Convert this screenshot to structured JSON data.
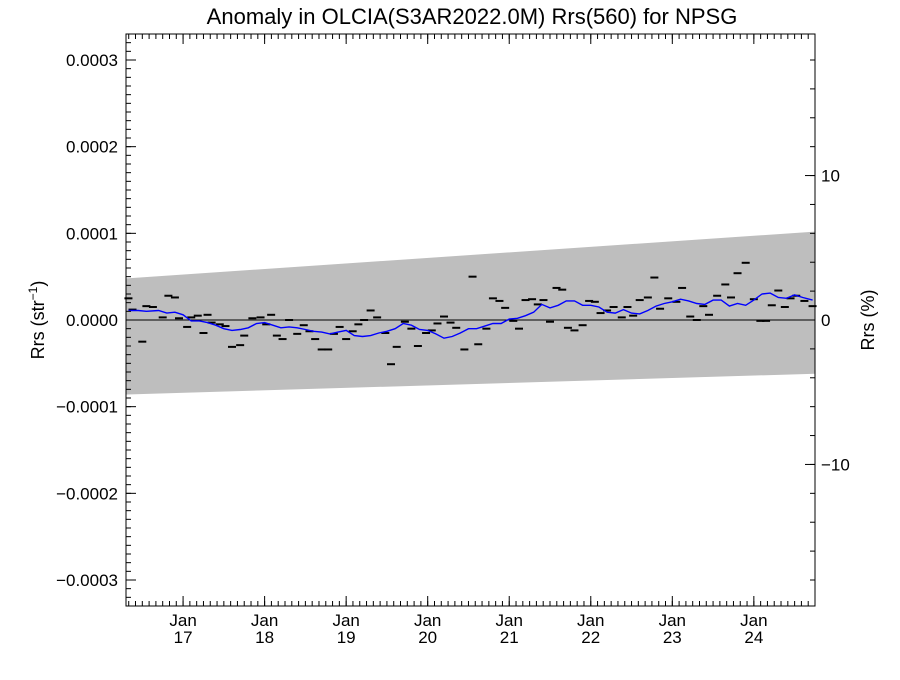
{
  "chart_data": {
    "type": "line",
    "title": "Anomaly in OLCIA(S3AR2022.0M) Rrs(560) for NPSG",
    "ylabel_left": "Rrs (str",
    "ylabel_left_sup": "−1",
    "ylabel_left_close": ")",
    "ylabel_right": "Rrs (%)",
    "xlim": [
      2016.3,
      2024.75
    ],
    "ylim": [
      -0.00033,
      0.00033
    ],
    "ylim_right_percent": [
      -19.8,
      19.8
    ],
    "y_ticks": [
      {
        "value": 0.0003,
        "label": "0.0003"
      },
      {
        "value": 0.0002,
        "label": "0.0002"
      },
      {
        "value": 0.0001,
        "label": "0.0001"
      },
      {
        "value": 0.0,
        "label": "0.0000"
      },
      {
        "value": -0.0001,
        "label": "−0.0001"
      },
      {
        "value": -0.0002,
        "label": "−0.0002"
      },
      {
        "value": -0.0003,
        "label": "−0.0003"
      }
    ],
    "y_right_ticks": [
      {
        "value": 10,
        "label": "10"
      },
      {
        "value": 0,
        "label": "0"
      },
      {
        "value": -10,
        "label": "−10"
      }
    ],
    "x_ticks": [
      {
        "value": 2017,
        "month": "Jan",
        "year": "17"
      },
      {
        "value": 2018,
        "month": "Jan",
        "year": "18"
      },
      {
        "value": 2019,
        "month": "Jan",
        "year": "19"
      },
      {
        "value": 2020,
        "month": "Jan",
        "year": "20"
      },
      {
        "value": 2021,
        "month": "Jan",
        "year": "21"
      },
      {
        "value": 2022,
        "month": "Jan",
        "year": "22"
      },
      {
        "value": 2023,
        "month": "Jan",
        "year": "23"
      },
      {
        "value": 2024,
        "month": "Jan",
        "year": "24"
      }
    ],
    "band": {
      "x": [
        2016.3,
        2024.75
      ],
      "upper": [
        4.8e-05,
        0.000102
      ],
      "lower": [
        -8.6e-05,
        -6.2e-05
      ],
      "color": "#bebebe"
    },
    "zero_line": 0,
    "series": [
      {
        "kind": "points",
        "color": "#000000",
        "x": [
          2016.33,
          2016.38,
          2016.5,
          2016.55,
          2016.63,
          2016.75,
          2016.82,
          2016.9,
          2016.95,
          2017.05,
          2017.1,
          2017.18,
          2017.25,
          2017.3,
          2017.35,
          2017.45,
          2017.52,
          2017.6,
          2017.7,
          2017.75,
          2017.85,
          2017.95,
          2018.02,
          2018.08,
          2018.15,
          2018.22,
          2018.3,
          2018.4,
          2018.48,
          2018.55,
          2018.62,
          2018.7,
          2018.78,
          2018.85,
          2018.92,
          2019.0,
          2019.08,
          2019.15,
          2019.22,
          2019.3,
          2019.38,
          2019.48,
          2019.55,
          2019.62,
          2019.72,
          2019.8,
          2019.88,
          2019.98,
          2020.05,
          2020.12,
          2020.2,
          2020.28,
          2020.35,
          2020.45,
          2020.55,
          2020.62,
          2020.72,
          2020.8,
          2020.88,
          2020.95,
          2021.05,
          2021.12,
          2021.2,
          2021.28,
          2021.35,
          2021.42,
          2021.5,
          2021.58,
          2021.65,
          2021.72,
          2021.8,
          2021.9,
          2021.98,
          2022.05,
          2022.12,
          2022.2,
          2022.28,
          2022.38,
          2022.45,
          2022.52,
          2022.6,
          2022.7,
          2022.78,
          2022.85,
          2022.95,
          2023.05,
          2023.12,
          2023.22,
          2023.3,
          2023.38,
          2023.45,
          2023.55,
          2023.65,
          2023.72,
          2023.8,
          2023.9,
          2024.0,
          2024.08,
          2024.15,
          2024.22,
          2024.3,
          2024.38,
          2024.45,
          2024.52,
          2024.62,
          2024.72
        ],
        "y": [
          2.5e-05,
          1.2e-05,
          -2.5e-05,
          1.6e-05,
          1.5e-05,
          3e-06,
          2.8e-05,
          2.6e-05,
          2e-06,
          -8e-06,
          3e-06,
          5e-06,
          -1.5e-05,
          6e-06,
          -3e-06,
          -5e-06,
          -7e-06,
          -3.1e-05,
          -2.9e-05,
          -1.8e-05,
          2e-06,
          3e-06,
          -5e-06,
          6e-06,
          -1.8e-05,
          -2.2e-05,
          0.0,
          -1.6e-05,
          -6e-06,
          -1.3e-05,
          -2.2e-05,
          -3.4e-05,
          -3.4e-05,
          -1.6e-05,
          -8e-06,
          -2.2e-05,
          -1.3e-05,
          -5e-06,
          0.0,
          1.1e-05,
          3e-06,
          -1.5e-05,
          -5.1e-05,
          -3.1e-05,
          -2e-06,
          -1e-05,
          -3e-05,
          -1.5e-05,
          -1.2e-05,
          -4e-06,
          4e-06,
          -3e-06,
          -9e-06,
          -3.4e-05,
          5e-05,
          -2.8e-05,
          -1e-05,
          2.5e-05,
          2.2e-05,
          1.4e-05,
          -1e-06,
          -1e-05,
          2.3e-05,
          2.4e-05,
          1.8e-05,
          2.3e-05,
          -2e-06,
          3.7e-05,
          3.5e-05,
          -9e-06,
          -1.2e-05,
          -6e-06,
          2.2e-05,
          2.1e-05,
          8e-06,
          1.1e-05,
          1.5e-05,
          3e-06,
          1.5e-05,
          5e-06,
          2.3e-05,
          2.6e-05,
          4.9e-05,
          1.3e-05,
          2.5e-05,
          2.1e-05,
          3.7e-05,
          4e-06,
          0.0,
          1.6e-05,
          6e-06,
          2.8e-05,
          4.1e-05,
          2.6e-05,
          5.4e-05,
          6.6e-05,
          2.4e-05,
          -1e-06,
          -1e-06,
          1.7e-05,
          3.4e-05,
          1.5e-05,
          2.5e-05,
          2.8e-05,
          2.2e-05,
          1.6e-05
        ],
        "name": ""
      },
      {
        "kind": "line",
        "color": "#0000ff",
        "x": [
          2016.33,
          2016.45,
          2016.55,
          2016.7,
          2016.8,
          2016.9,
          2017.0,
          2017.1,
          2017.2,
          2017.3,
          2017.4,
          2017.5,
          2017.6,
          2017.7,
          2017.8,
          2017.9,
          2018.0,
          2018.1,
          2018.2,
          2018.3,
          2018.4,
          2018.5,
          2018.6,
          2018.7,
          2018.8,
          2018.9,
          2019.0,
          2019.1,
          2019.2,
          2019.3,
          2019.4,
          2019.5,
          2019.6,
          2019.7,
          2019.8,
          2019.9,
          2020.0,
          2020.1,
          2020.2,
          2020.3,
          2020.4,
          2020.5,
          2020.6,
          2020.7,
          2020.8,
          2020.9,
          2021.0,
          2021.1,
          2021.2,
          2021.3,
          2021.4,
          2021.5,
          2021.6,
          2021.7,
          2021.8,
          2021.9,
          2022.0,
          2022.1,
          2022.2,
          2022.3,
          2022.4,
          2022.5,
          2022.6,
          2022.7,
          2022.8,
          2022.9,
          2023.0,
          2023.1,
          2023.2,
          2023.3,
          2023.4,
          2023.5,
          2023.6,
          2023.7,
          2023.8,
          2023.9,
          2024.0,
          2024.1,
          2024.2,
          2024.3,
          2024.4,
          2024.5,
          2024.6,
          2024.72
        ],
        "y": [
          1.1e-05,
          1.1e-05,
          1e-05,
          1.1e-05,
          8e-06,
          9e-06,
          6e-06,
          -1e-06,
          -1e-06,
          -3e-06,
          -6e-06,
          -1e-05,
          -1.2e-05,
          -1.1e-05,
          -9e-06,
          -4e-06,
          -3e-06,
          -6e-06,
          -9e-06,
          -8e-06,
          -9e-06,
          -1.1e-05,
          -1.3e-05,
          -1.4e-05,
          -1.6e-05,
          -1.4e-05,
          -1.2e-05,
          -1.8e-05,
          -1.9e-05,
          -1.8e-05,
          -1.5e-05,
          -1.3e-05,
          -1e-05,
          -4e-06,
          -6e-06,
          -1.1e-05,
          -1.2e-05,
          -1.6e-05,
          -2.1e-05,
          -1.9e-05,
          -1.5e-05,
          -1e-05,
          -1e-05,
          -7e-06,
          -4e-06,
          -4e-06,
          1e-06,
          2e-06,
          5e-06,
          9e-06,
          1.8e-05,
          1.4e-05,
          1.7e-05,
          2.2e-05,
          2.2e-05,
          1.7e-05,
          1.7e-05,
          1.5e-05,
          9e-06,
          8e-06,
          1.2e-05,
          8e-06,
          7e-06,
          1.1e-05,
          1.6e-05,
          1.9e-05,
          2.1e-05,
          2.4e-05,
          2.2e-05,
          1.9e-05,
          1.8e-05,
          2.3e-05,
          2.3e-05,
          1.6e-05,
          1.9e-05,
          1.7e-05,
          2.3e-05,
          3e-05,
          3.1e-05,
          2.6e-05,
          2.5e-05,
          2.9e-05,
          2.6e-05,
          2.3e-05
        ],
        "name": ""
      }
    ]
  }
}
